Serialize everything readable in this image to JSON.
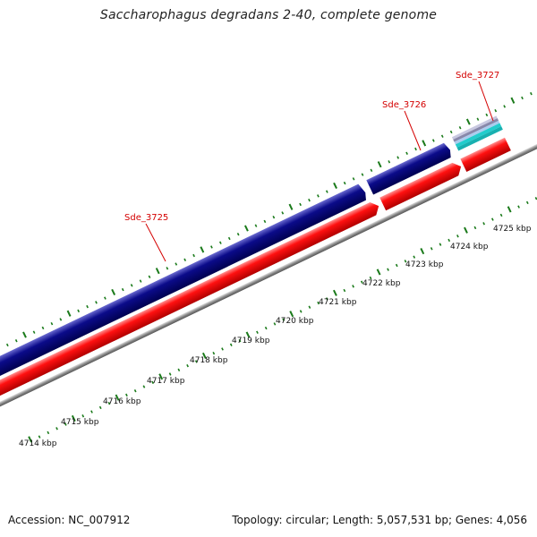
{
  "title": "Saccharophagus degradans 2-40, complete genome",
  "footer": {
    "accession": "Accession: NC_007912",
    "topology": "Topology: circular; Length: 5,057,531 bp; Genes: 4,056"
  },
  "genes": [
    {
      "name": "Sde_3725"
    },
    {
      "name": "Sde_3726"
    },
    {
      "name": "Sde_3727"
    }
  ],
  "ruler": {
    "labels": [
      "4714 kbp",
      "4715 kbp",
      "4716 kbp",
      "4717 kbp",
      "4718 kbp",
      "4719 kbp",
      "4720 kbp",
      "4721 kbp",
      "4722 kbp",
      "4723 kbp",
      "4724 kbp",
      "4725 kbp"
    ]
  },
  "colors": {
    "forward_gene": "#0a0a7a",
    "reverse_gene": "#ff0000",
    "backbone": "#8a8a8a",
    "ticks": "#1a7a1a",
    "label": "#d40000",
    "cyan_feature": "#22cccc",
    "grey_feature": "#8888aa"
  }
}
